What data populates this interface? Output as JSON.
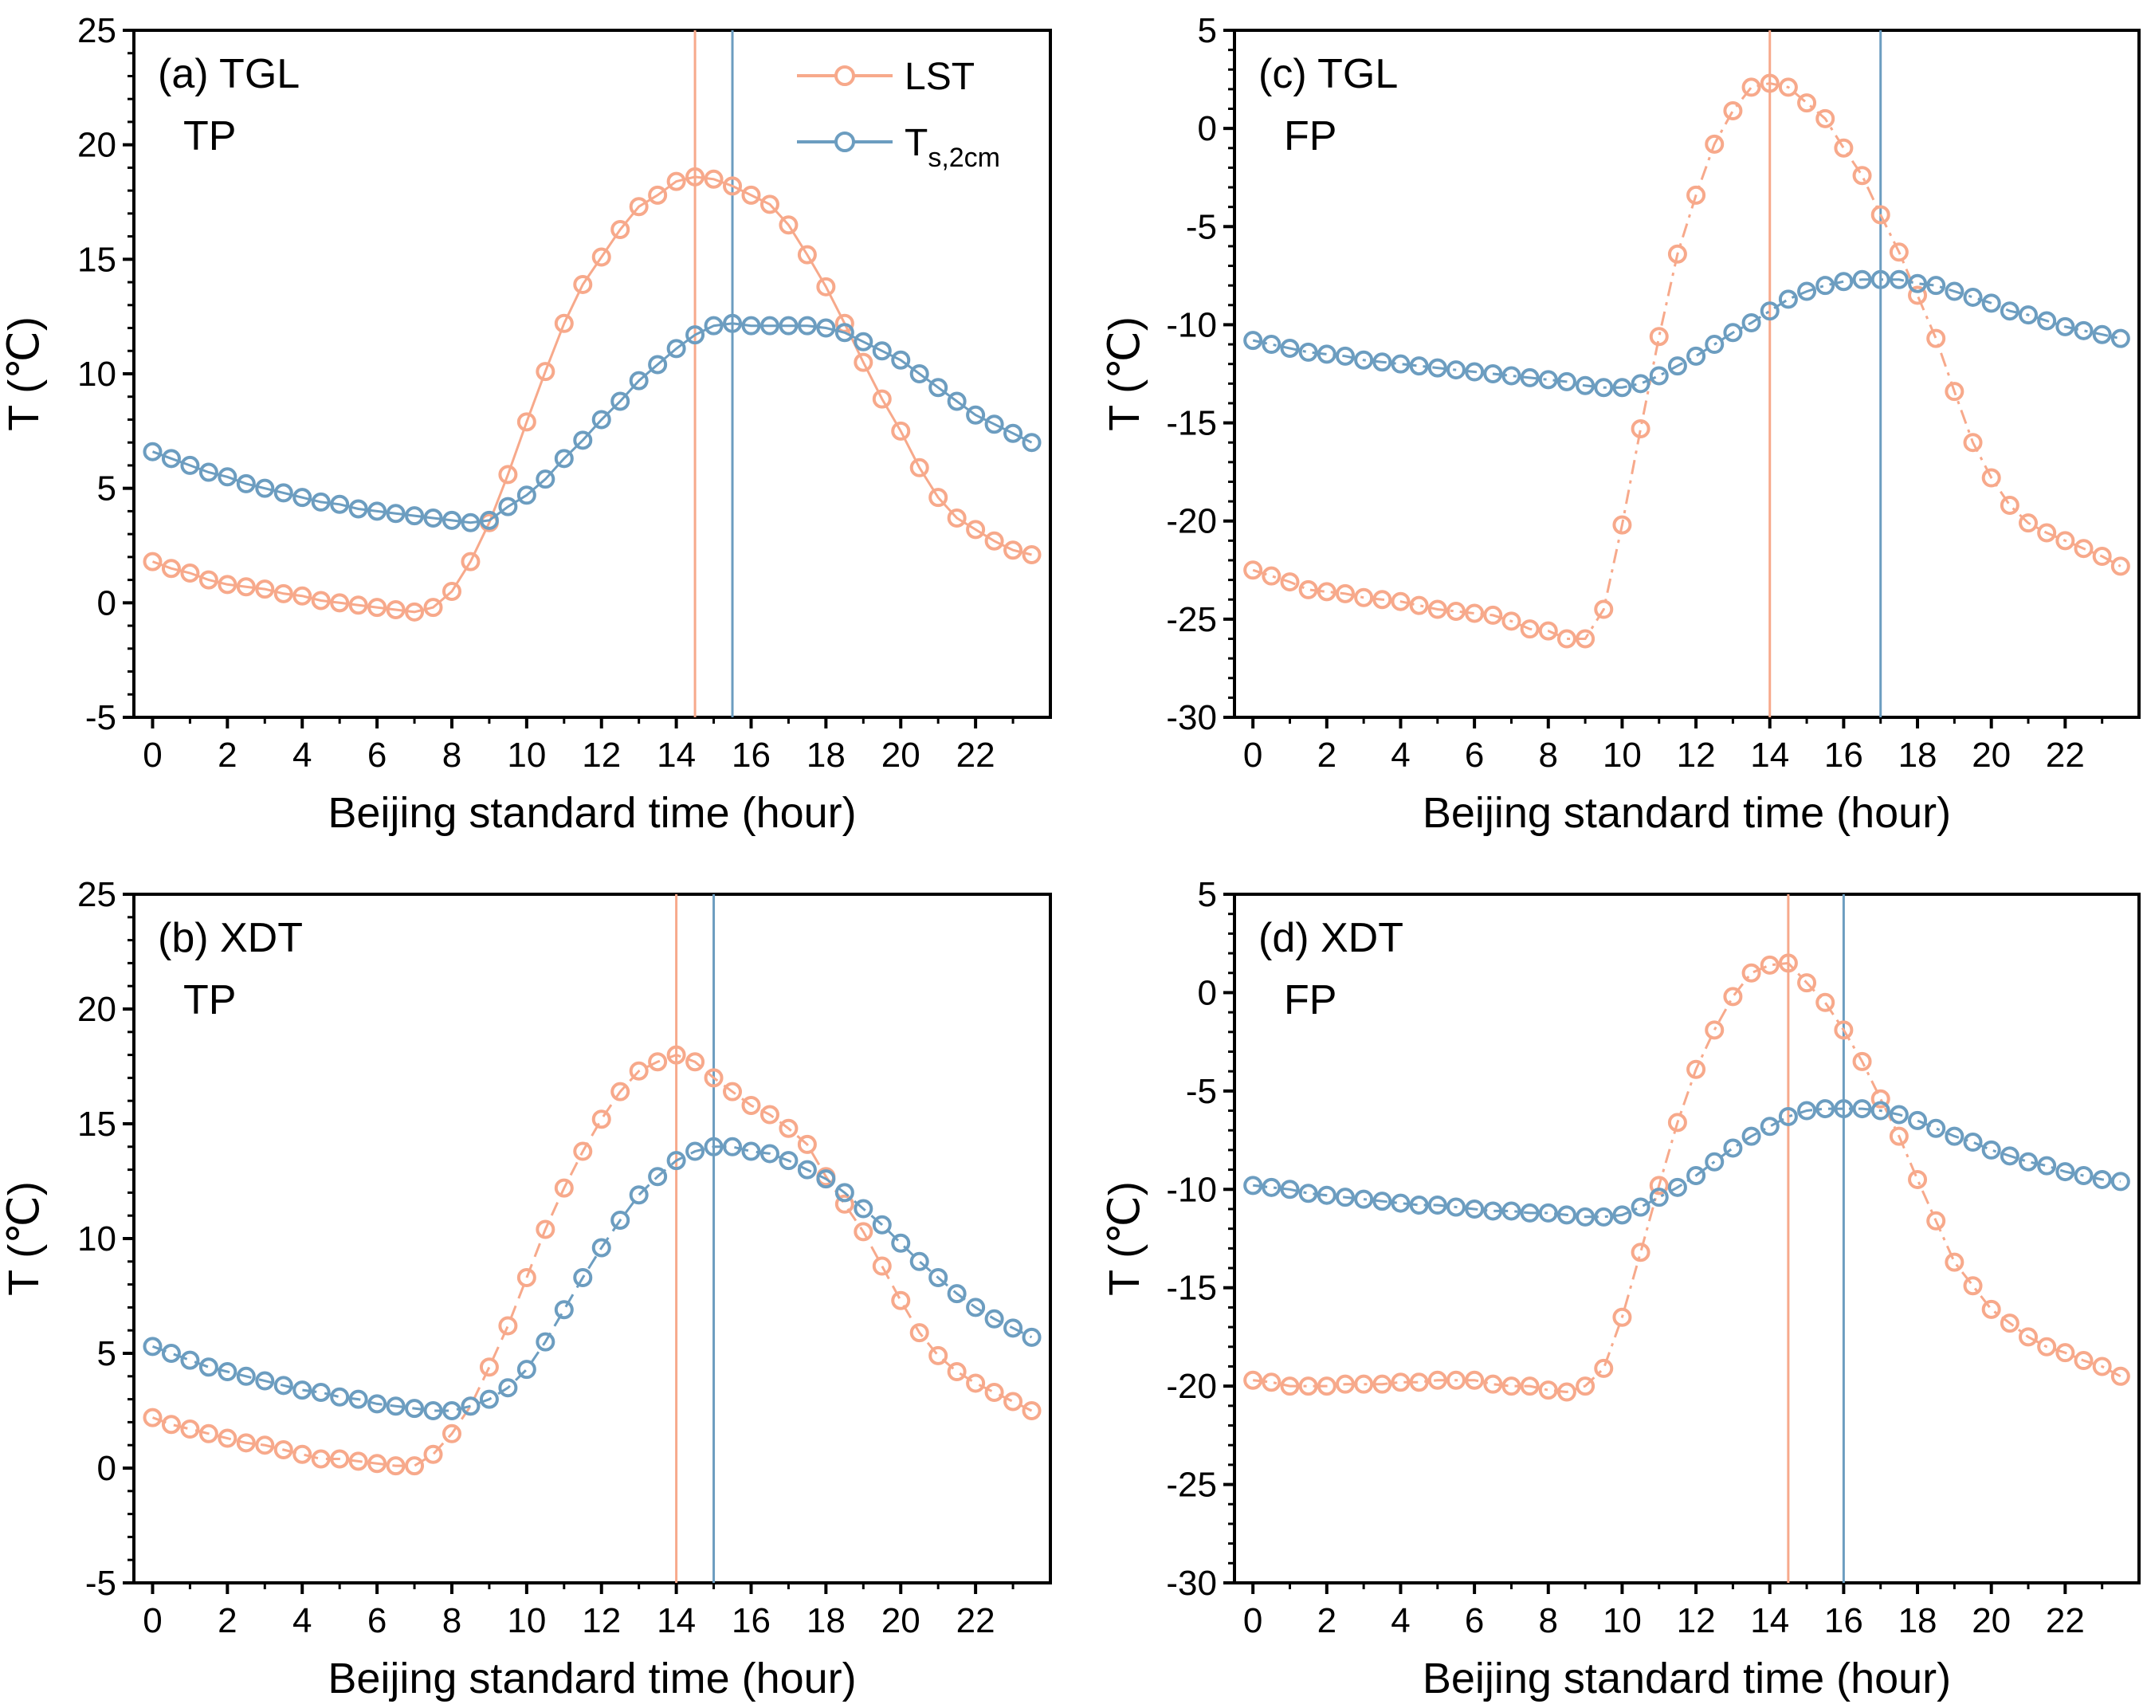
{
  "legend": {
    "items": [
      {
        "label": "LST",
        "color": "#F7A98B"
      },
      {
        "label": "T",
        "sub": "s,2cm",
        "color": "#6C9DC0"
      }
    ]
  },
  "chart_data": [
    {
      "id": "a",
      "type": "line",
      "panel_label": "(a) TGL",
      "panel_sublabel": "TP",
      "xlabel": "Beijing standard time (hour)",
      "ylabel": "T (℃)",
      "xlim": [
        -0.5,
        24
      ],
      "ylim": [
        -5,
        25
      ],
      "xticks": [
        0,
        2,
        4,
        6,
        8,
        10,
        12,
        14,
        16,
        18,
        20,
        22
      ],
      "yticks": [
        -5,
        0,
        5,
        10,
        15,
        20,
        25
      ],
      "line_style": "solid",
      "legend_position": "top-right",
      "vlines": [
        {
          "series": "LST",
          "x": 14.5
        },
        {
          "series": "Ts,2cm",
          "x": 15.5
        }
      ],
      "x": [
        0,
        0.5,
        1,
        1.5,
        2,
        2.5,
        3,
        3.5,
        4,
        4.5,
        5,
        5.5,
        6,
        6.5,
        7,
        7.5,
        8,
        8.5,
        9,
        9.5,
        10,
        10.5,
        11,
        11.5,
        12,
        12.5,
        13,
        13.5,
        14,
        14.5,
        15,
        15.5,
        16,
        16.5,
        17,
        17.5,
        18,
        18.5,
        19,
        19.5,
        20,
        20.5,
        21,
        21.5,
        22,
        22.5,
        23,
        23.5
      ],
      "series": [
        {
          "name": "LST",
          "values": [
            1.8,
            1.5,
            1.3,
            1.0,
            0.8,
            0.7,
            0.6,
            0.4,
            0.3,
            0.1,
            0.0,
            -0.1,
            -0.2,
            -0.3,
            -0.4,
            -0.2,
            0.5,
            1.8,
            3.5,
            5.6,
            7.9,
            10.1,
            12.2,
            13.9,
            15.1,
            16.3,
            17.3,
            17.8,
            18.4,
            18.6,
            18.5,
            18.2,
            17.8,
            17.4,
            16.5,
            15.2,
            13.8,
            12.2,
            10.5,
            8.9,
            7.5,
            5.9,
            4.6,
            3.7,
            3.2,
            2.7,
            2.3,
            2.1
          ]
        },
        {
          "name": "Ts,2cm",
          "values": [
            6.6,
            6.3,
            6.0,
            5.7,
            5.5,
            5.2,
            5.0,
            4.8,
            4.6,
            4.4,
            4.3,
            4.1,
            4.0,
            3.9,
            3.8,
            3.7,
            3.6,
            3.5,
            3.6,
            4.2,
            4.7,
            5.4,
            6.3,
            7.1,
            8.0,
            8.8,
            9.7,
            10.4,
            11.1,
            11.7,
            12.1,
            12.2,
            12.1,
            12.1,
            12.1,
            12.1,
            12.0,
            11.8,
            11.4,
            11.0,
            10.6,
            10.0,
            9.4,
            8.8,
            8.2,
            7.8,
            7.4,
            7.0
          ]
        }
      ]
    },
    {
      "id": "c",
      "type": "line",
      "panel_label": "(c) TGL",
      "panel_sublabel": "FP",
      "xlabel": "Beijing standard time (hour)",
      "ylabel": "T (℃)",
      "xlim": [
        -0.5,
        24
      ],
      "ylim": [
        -30,
        5
      ],
      "xticks": [
        0,
        2,
        4,
        6,
        8,
        10,
        12,
        14,
        16,
        18,
        20,
        22
      ],
      "yticks": [
        -30,
        -25,
        -20,
        -15,
        -10,
        -5,
        0,
        5
      ],
      "line_style": "dashdot",
      "vlines": [
        {
          "series": "LST",
          "x": 14
        },
        {
          "series": "Ts,2cm",
          "x": 17
        }
      ],
      "x": [
        0,
        0.5,
        1,
        1.5,
        2,
        2.5,
        3,
        3.5,
        4,
        4.5,
        5,
        5.5,
        6,
        6.5,
        7,
        7.5,
        8,
        8.5,
        9,
        9.5,
        10,
        10.5,
        11,
        11.5,
        12,
        12.5,
        13,
        13.5,
        14,
        14.5,
        15,
        15.5,
        16,
        16.5,
        17,
        17.5,
        18,
        18.5,
        19,
        19.5,
        20,
        20.5,
        21,
        21.5,
        22,
        22.5,
        23,
        23.5
      ],
      "series": [
        {
          "name": "LST",
          "values": [
            -22.5,
            -22.8,
            -23.1,
            -23.5,
            -23.6,
            -23.7,
            -23.9,
            -24.0,
            -24.1,
            -24.3,
            -24.5,
            -24.6,
            -24.7,
            -24.8,
            -25.1,
            -25.5,
            -25.6,
            -26.0,
            -26.0,
            -24.5,
            -20.2,
            -15.3,
            -10.6,
            -6.4,
            -3.4,
            -0.8,
            0.9,
            2.1,
            2.3,
            2.1,
            1.3,
            0.5,
            -1.0,
            -2.4,
            -4.4,
            -6.3,
            -8.5,
            -10.7,
            -13.4,
            -16.0,
            -17.8,
            -19.2,
            -20.1,
            -20.6,
            -21.0,
            -21.4,
            -21.8,
            -22.3
          ]
        },
        {
          "name": "Ts,2cm",
          "values": [
            -10.8,
            -11.0,
            -11.2,
            -11.4,
            -11.5,
            -11.6,
            -11.8,
            -11.9,
            -12.0,
            -12.1,
            -12.2,
            -12.3,
            -12.4,
            -12.5,
            -12.6,
            -12.7,
            -12.8,
            -12.9,
            -13.1,
            -13.2,
            -13.2,
            -13.0,
            -12.6,
            -12.1,
            -11.6,
            -11.0,
            -10.4,
            -9.9,
            -9.3,
            -8.7,
            -8.3,
            -8.0,
            -7.8,
            -7.7,
            -7.7,
            -7.7,
            -7.9,
            -8.0,
            -8.3,
            -8.6,
            -8.9,
            -9.3,
            -9.5,
            -9.8,
            -10.1,
            -10.3,
            -10.5,
            -10.7
          ]
        }
      ]
    },
    {
      "id": "b",
      "type": "line",
      "panel_label": "(b) XDT",
      "panel_sublabel": "TP",
      "xlabel": "Beijing standard time (hour)",
      "ylabel": "T (℃)",
      "xlim": [
        -0.5,
        24
      ],
      "ylim": [
        -5,
        25
      ],
      "xticks": [
        0,
        2,
        4,
        6,
        8,
        10,
        12,
        14,
        16,
        18,
        20,
        22
      ],
      "yticks": [
        -5,
        0,
        5,
        10,
        15,
        20,
        25
      ],
      "line_style": "dashed",
      "vlines": [
        {
          "series": "LST",
          "x": 14
        },
        {
          "series": "Ts,2cm",
          "x": 15
        }
      ],
      "x": [
        0,
        0.5,
        1,
        1.5,
        2,
        2.5,
        3,
        3.5,
        4,
        4.5,
        5,
        5.5,
        6,
        6.5,
        7,
        7.5,
        8,
        8.5,
        9,
        9.5,
        10,
        10.5,
        11,
        11.5,
        12,
        12.5,
        13,
        13.5,
        14,
        14.5,
        15,
        15.5,
        16,
        16.5,
        17,
        17.5,
        18,
        18.5,
        19,
        19.5,
        20,
        20.5,
        21,
        21.5,
        22,
        22.5,
        23,
        23.5
      ],
      "series": [
        {
          "name": "LST",
          "values": [
            2.2,
            1.9,
            1.7,
            1.5,
            1.3,
            1.1,
            1.0,
            0.8,
            0.6,
            0.4,
            0.4,
            0.3,
            0.2,
            0.1,
            0.1,
            0.6,
            1.5,
            2.7,
            4.4,
            6.2,
            8.3,
            10.4,
            12.2,
            13.8,
            15.2,
            16.4,
            17.3,
            17.7,
            18.0,
            17.7,
            17.0,
            16.4,
            15.8,
            15.4,
            14.8,
            14.1,
            12.7,
            11.5,
            10.3,
            8.8,
            7.3,
            5.9,
            4.9,
            4.2,
            3.7,
            3.3,
            2.9,
            2.5
          ]
        },
        {
          "name": "Ts,2cm",
          "values": [
            5.3,
            5.0,
            4.7,
            4.4,
            4.2,
            4.0,
            3.8,
            3.6,
            3.4,
            3.3,
            3.1,
            3.0,
            2.8,
            2.7,
            2.6,
            2.5,
            2.5,
            2.7,
            3.0,
            3.5,
            4.3,
            5.5,
            6.9,
            8.3,
            9.6,
            10.8,
            11.9,
            12.7,
            13.4,
            13.8,
            14.0,
            14.0,
            13.8,
            13.7,
            13.4,
            13.0,
            12.6,
            12.0,
            11.3,
            10.6,
            9.8,
            9.0,
            8.3,
            7.6,
            7.0,
            6.5,
            6.1,
            5.7
          ]
        }
      ]
    },
    {
      "id": "d",
      "type": "line",
      "panel_label": "(d) XDT",
      "panel_sublabel": "FP",
      "xlabel": "Beijing standard time (hour)",
      "ylabel": "T (℃)",
      "xlim": [
        -0.5,
        24
      ],
      "ylim": [
        -30,
        5
      ],
      "xticks": [
        0,
        2,
        4,
        6,
        8,
        10,
        12,
        14,
        16,
        18,
        20,
        22
      ],
      "yticks": [
        -30,
        -25,
        -20,
        -15,
        -10,
        -5,
        0,
        5
      ],
      "line_style": "dashdot",
      "vlines": [
        {
          "series": "LST",
          "x": 14.5
        },
        {
          "series": "Ts,2cm",
          "x": 16
        }
      ],
      "x": [
        0,
        0.5,
        1,
        1.5,
        2,
        2.5,
        3,
        3.5,
        4,
        4.5,
        5,
        5.5,
        6,
        6.5,
        7,
        7.5,
        8,
        8.5,
        9,
        9.5,
        10,
        10.5,
        11,
        11.5,
        12,
        12.5,
        13,
        13.5,
        14,
        14.5,
        15,
        15.5,
        16,
        16.5,
        17,
        17.5,
        18,
        18.5,
        19,
        19.5,
        20,
        20.5,
        21,
        21.5,
        22,
        22.5,
        23,
        23.5
      ],
      "series": [
        {
          "name": "LST",
          "values": [
            -19.7,
            -19.8,
            -20.0,
            -20.0,
            -20.0,
            -19.9,
            -19.9,
            -19.9,
            -19.8,
            -19.8,
            -19.7,
            -19.7,
            -19.7,
            -19.9,
            -20.0,
            -20.0,
            -20.2,
            -20.3,
            -20.0,
            -19.1,
            -16.5,
            -13.2,
            -9.8,
            -6.6,
            -3.9,
            -1.9,
            -0.2,
            1.0,
            1.4,
            1.5,
            0.5,
            -0.5,
            -1.9,
            -3.5,
            -5.4,
            -7.3,
            -9.5,
            -11.6,
            -13.7,
            -14.9,
            -16.1,
            -16.8,
            -17.5,
            -18.0,
            -18.3,
            -18.7,
            -19.0,
            -19.5
          ]
        },
        {
          "name": "Ts,2cm",
          "values": [
            -9.8,
            -9.9,
            -10.0,
            -10.2,
            -10.3,
            -10.4,
            -10.5,
            -10.6,
            -10.7,
            -10.8,
            -10.8,
            -10.9,
            -11.0,
            -11.1,
            -11.1,
            -11.2,
            -11.2,
            -11.3,
            -11.4,
            -11.4,
            -11.3,
            -10.9,
            -10.4,
            -9.9,
            -9.3,
            -8.6,
            -7.9,
            -7.3,
            -6.8,
            -6.3,
            -6.0,
            -5.9,
            -5.9,
            -5.9,
            -6.0,
            -6.2,
            -6.5,
            -6.9,
            -7.3,
            -7.6,
            -8.0,
            -8.3,
            -8.6,
            -8.8,
            -9.1,
            -9.3,
            -9.5,
            -9.6
          ]
        }
      ]
    }
  ]
}
